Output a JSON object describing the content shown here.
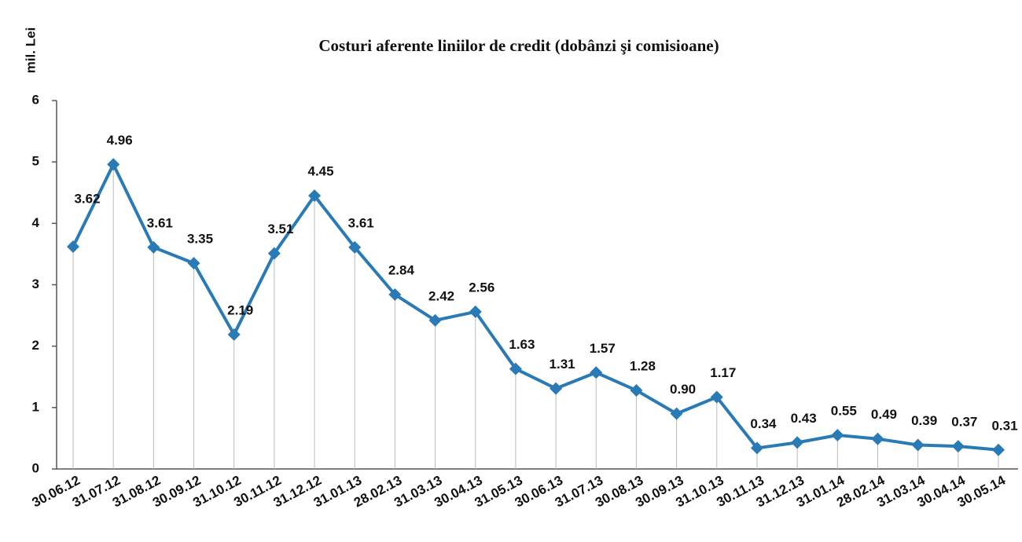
{
  "chart_data": {
    "type": "line",
    "title": "Costuri aferente liniilor de credit (dobânzi şi comisioane)",
    "y_label": "mil. Lei",
    "categories": [
      "30.06.12",
      "31.07.12",
      "31.08.12",
      "30.09.12",
      "31.10.12",
      "30.11.12",
      "31.12.12",
      "31.01.13",
      "28.02.13",
      "31.03.13",
      "30.04.13",
      "31.05.13",
      "30.06.13",
      "31.07.13",
      "30.08.13",
      "30.09.13",
      "31.10.13",
      "30.11.13",
      "31.12.13",
      "31.01.14",
      "28.02.14",
      "31.03.14",
      "30.04.14",
      "30.05.14"
    ],
    "values": [
      3.62,
      4.96,
      3.61,
      3.35,
      2.19,
      3.51,
      4.45,
      3.61,
      2.84,
      2.42,
      2.56,
      1.63,
      1.31,
      1.57,
      1.28,
      0.9,
      1.17,
      0.34,
      0.43,
      0.55,
      0.49,
      0.39,
      0.37,
      0.31
    ],
    "value_labels": [
      "3.62",
      "4.96",
      "3.61",
      "3.35",
      "2.19",
      "3.51",
      "4.45",
      "3.61",
      "2.84",
      "2.42",
      "2.56",
      "1.63",
      "1.31",
      "1.57",
      "1.28",
      "0.90",
      "1.17",
      "0.34",
      "0.43",
      "0.55",
      "0.49",
      "0.39",
      "0.37",
      "0.31"
    ],
    "color": "#2a7ab5",
    "ylim": [
      0,
      6
    ],
    "yticks": [
      0,
      1,
      2,
      3,
      4,
      5,
      6
    ],
    "drop_lines": true
  }
}
